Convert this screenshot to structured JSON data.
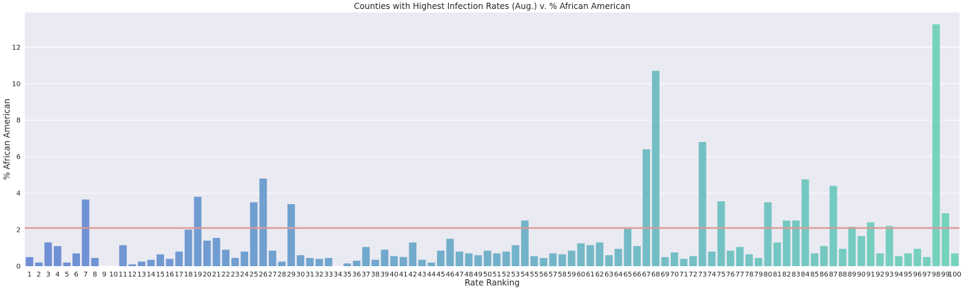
{
  "chart_data": {
    "type": "bar",
    "title": "Counties with Highest Infection Rates (Aug.) v. % African American",
    "xlabel": "Rate Ranking",
    "ylabel": "% African American",
    "categories": [
      "1",
      "2",
      "3",
      "4",
      "5",
      "6",
      "7",
      "8",
      "9",
      "10",
      "11",
      "12",
      "13",
      "14",
      "15",
      "16",
      "17",
      "18",
      "19",
      "20",
      "21",
      "22",
      "23",
      "24",
      "25",
      "26",
      "27",
      "28",
      "29",
      "30",
      "31",
      "32",
      "33",
      "34",
      "35",
      "36",
      "37",
      "38",
      "39",
      "40",
      "41",
      "42",
      "43",
      "44",
      "45",
      "46",
      "47",
      "48",
      "49",
      "50",
      "51",
      "52",
      "53",
      "54",
      "55",
      "56",
      "57",
      "58",
      "59",
      "60",
      "61",
      "62",
      "63",
      "64",
      "65",
      "66",
      "67",
      "68",
      "69",
      "70",
      "71",
      "72",
      "73",
      "74",
      "75",
      "76",
      "77",
      "78",
      "79",
      "80",
      "81",
      "82",
      "83",
      "84",
      "85",
      "86",
      "87",
      "88",
      "89",
      "90",
      "91",
      "92",
      "93",
      "94",
      "95",
      "96",
      "97",
      "98",
      "99",
      "100"
    ],
    "values": [
      0.5,
      0.2,
      1.3,
      1.1,
      0.2,
      0.7,
      3.65,
      0.45,
      0,
      0,
      1.15,
      0.1,
      0.25,
      0.35,
      0.65,
      0.4,
      0.8,
      2.0,
      3.8,
      1.4,
      1.55,
      0.9,
      0.45,
      0.8,
      3.5,
      4.8,
      0.85,
      0.25,
      3.4,
      0.6,
      0.45,
      0.4,
      0.45,
      0,
      0.15,
      0.3,
      1.05,
      0.35,
      0.9,
      0.55,
      0.5,
      1.3,
      0.35,
      0.2,
      0.85,
      1.5,
      0.8,
      0.7,
      0.6,
      0.85,
      0.7,
      0.8,
      1.15,
      2.5,
      0.55,
      0.45,
      0.7,
      0.65,
      0.85,
      1.25,
      1.15,
      1.3,
      0.6,
      0.95,
      2.05,
      1.1,
      6.4,
      10.7,
      0.5,
      0.75,
      0.4,
      0.55,
      6.8,
      0.8,
      3.55,
      0.85,
      1.05,
      0.65,
      0.45,
      3.5,
      1.3,
      2.5,
      2.5,
      4.75,
      0.7,
      1.1,
      4.4,
      0.95,
      2.15,
      1.65,
      2.4,
      0.7,
      2.2,
      0.55,
      0.7,
      0.95,
      0.5,
      13.25,
      2.9,
      0.7
    ],
    "reference_line": 2.08,
    "ylim": [
      0,
      13.9
    ],
    "yticks": [
      0,
      2,
      4,
      6,
      8,
      10,
      12
    ],
    "grid": true,
    "colors": {
      "background": "#eaeaf2",
      "gradient_start": "#6f8fd6",
      "gradient_end": "#75d3bd",
      "reference_line": "#d99a99",
      "text": "#262626"
    }
  }
}
